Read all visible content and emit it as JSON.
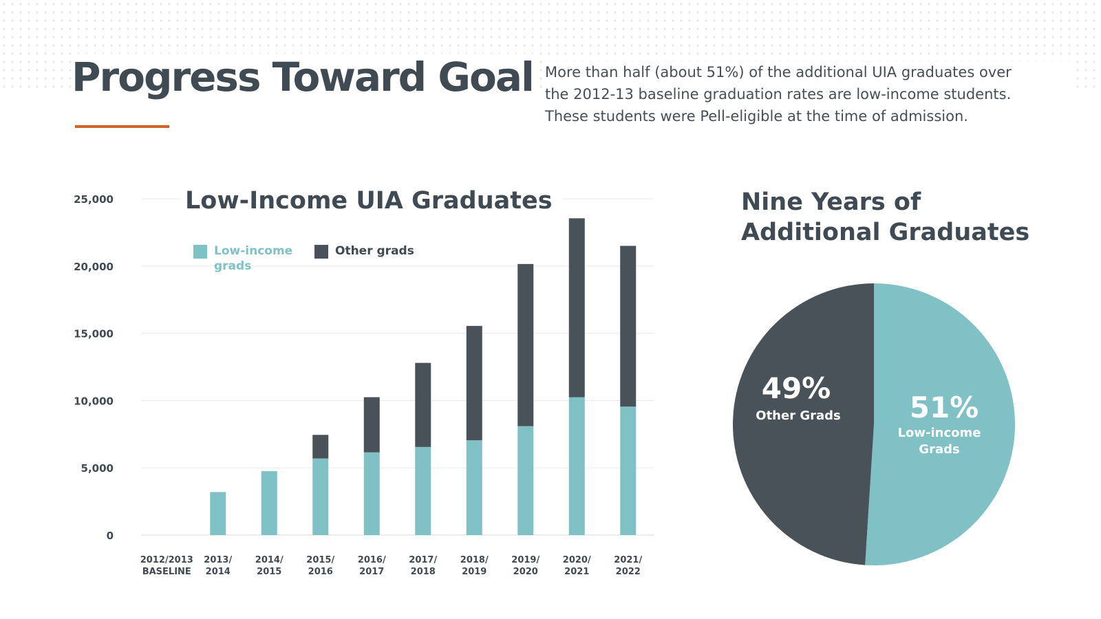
{
  "header": {
    "title": "Progress Toward Goal",
    "description_lines": [
      "More than half (about 51%) of the additional UIA graduates over",
      "the 2012-13 baseline graduation rates are low-income students.",
      "These students were Pell-eligible at the time of admission."
    ]
  },
  "colors": {
    "accent": "#d2622a",
    "low_income": "#7fc1c4",
    "other": "#495258",
    "text": "#3f4a52"
  },
  "bar_chart": {
    "title": "Low-Income UIA Graduates",
    "legend": {
      "low_income": "Low-income grads",
      "other": "Other grads"
    }
  },
  "pie_chart": {
    "title_lines": [
      "Nine Years of",
      "Additional Graduates"
    ]
  },
  "chart_data": [
    {
      "type": "bar",
      "stacked": true,
      "title": "Low-Income UIA Graduates",
      "categories": [
        [
          "2012/2013",
          "BASELINE"
        ],
        [
          "2013/",
          "2014"
        ],
        [
          "2014/",
          "2015"
        ],
        [
          "2015/",
          "2016"
        ],
        [
          "2016/",
          "2017"
        ],
        [
          "2017/",
          "2018"
        ],
        [
          "2018/",
          "2019"
        ],
        [
          "2019/",
          "2020"
        ],
        [
          "2020/",
          "2021"
        ],
        [
          "2021/",
          "2022"
        ]
      ],
      "series": [
        {
          "name": "Low-income grads",
          "values": [
            0,
            3200,
            4750,
            5700,
            6150,
            6550,
            7050,
            8100,
            10250,
            9550
          ]
        },
        {
          "name": "Other grads",
          "values": [
            0,
            0,
            0,
            1750,
            4100,
            6250,
            8500,
            12050,
            13300,
            11950
          ]
        }
      ],
      "ylim": [
        0,
        25000
      ],
      "yticks": [
        0,
        5000,
        10000,
        15000,
        20000,
        25000
      ],
      "ytick_labels": [
        "0",
        "5,000",
        "10,000",
        "15,000",
        "20,000",
        "25,000"
      ],
      "grid": true,
      "legend_position": "top-left"
    },
    {
      "type": "pie",
      "title": "Nine Years of Additional Graduates",
      "slices": [
        {
          "pct_label": "51%",
          "name_lines": [
            "Low-income",
            "Grads"
          ],
          "value": 51
        },
        {
          "pct_label": "49%",
          "name_lines": [
            "Other Grads"
          ],
          "value": 49
        }
      ]
    }
  ]
}
